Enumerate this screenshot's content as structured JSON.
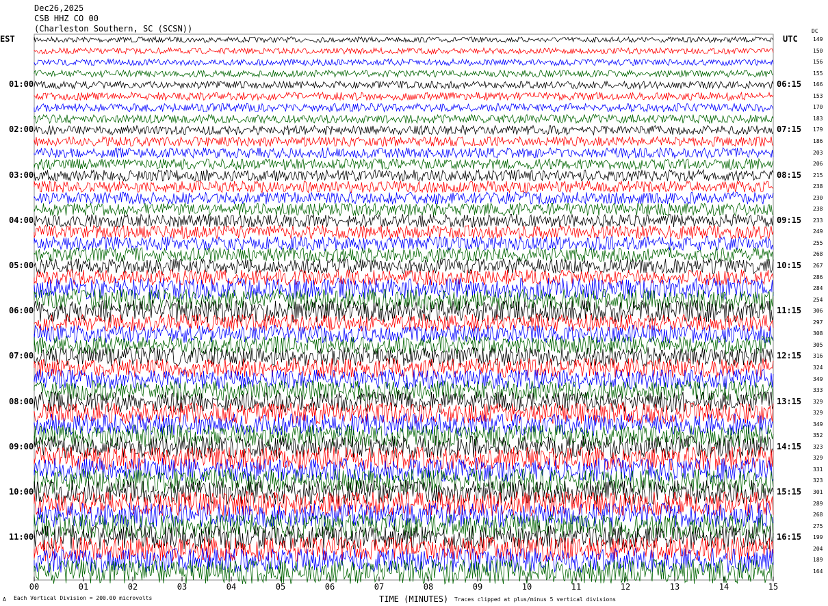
{
  "header": {
    "date": "Dec26,2025",
    "station": "CSB HHZ CO 00",
    "location": "(Charleston Southern, SC (SCSN))"
  },
  "chart_data": {
    "type": "line",
    "title": "",
    "left_axis_label": "EST",
    "right_axis_label": "UTC",
    "dc_label": "DC",
    "xlabel": "TIME (MINUTES)",
    "xlim": [
      0,
      15
    ],
    "x_ticks": [
      "00",
      "01",
      "02",
      "03",
      "04",
      "05",
      "06",
      "07",
      "08",
      "09",
      "10",
      "11",
      "12",
      "13",
      "14",
      "15"
    ],
    "est_labels": [
      "01:00",
      "02:00",
      "03:00",
      "04:00",
      "05:00",
      "06:00",
      "07:00",
      "08:00",
      "09:00",
      "10:00",
      "11:00"
    ],
    "utc_labels": [
      "06:15",
      "07:15",
      "08:15",
      "09:15",
      "10:15",
      "11:15",
      "12:15",
      "13:15",
      "14:15",
      "15:15",
      "16:15"
    ],
    "dc_offsets": [
      149,
      150,
      156,
      155,
      166,
      153,
      170,
      183,
      179,
      186,
      203,
      206,
      215,
      238,
      230,
      238,
      233,
      249,
      255,
      268,
      267,
      286,
      284,
      254,
      306,
      297,
      308,
      305,
      316,
      324,
      349,
      333,
      329,
      329,
      349,
      352,
      323,
      329,
      331,
      323,
      301,
      289,
      268,
      275,
      199,
      204,
      189,
      164
    ],
    "trace_colors": [
      "#000000",
      "#ff0000",
      "#0000ff",
      "#006400"
    ],
    "scale_note": "Each Vertical Division =  200.00 microvolts",
    "clip_note": "Traces clipped at plus/minus 5 vertical divisions",
    "corner_mark": "A"
  }
}
